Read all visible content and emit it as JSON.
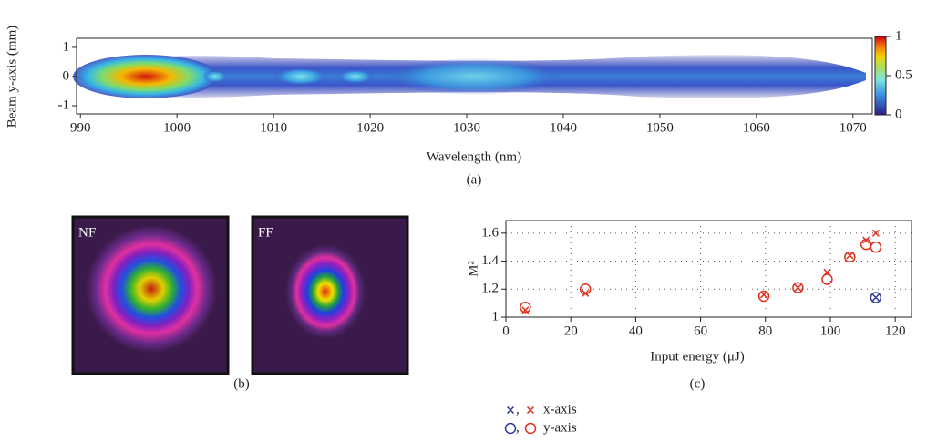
{
  "chart_data": [
    {
      "type": "heatmap",
      "xlabel": "Wavelength (nm)",
      "ylabel": "Beam y-axis (mm)",
      "caption": "(a)",
      "xlim": [
        989.6,
        1072
      ],
      "xticks": [
        990,
        1000,
        1010,
        1020,
        1030,
        1040,
        1050,
        1060,
        1070
      ],
      "ylim": [
        -1.28,
        1.31
      ],
      "yticks": [
        -1,
        0,
        1
      ],
      "colorbar": {
        "lim": [
          0,
          1
        ],
        "ticks": [
          0,
          0.5,
          1
        ]
      }
    },
    {
      "type": "image",
      "caption": "(b)",
      "labels": [
        "NF",
        "FF"
      ]
    },
    {
      "type": "scatter",
      "xlabel": "Input energy (μJ)",
      "ylabel": "M²",
      "caption": "(c)",
      "xlim": [
        0,
        125
      ],
      "xticks": [
        0,
        20,
        40,
        60,
        80,
        100,
        120
      ],
      "ylim": [
        1,
        1.69
      ],
      "yticks": [
        1,
        {
          "value": 1.2,
          "label": "1.2"
        },
        {
          "value": 1.4,
          "label": "1.4"
        },
        {
          "value": 1.6,
          "label": "1.6"
        }
      ],
      "grid": true,
      "series": [
        {
          "name": "x-axis",
          "marker": "x",
          "legend_colors": [
            "#2e3a9c",
            "#e0301e"
          ],
          "x": [
            6,
            24.5,
            79.5,
            90,
            99,
            106,
            111,
            114,
            114
          ],
          "values": [
            1.05,
            1.17,
            1.16,
            1.21,
            1.32,
            1.44,
            1.55,
            1.6,
            1.14
          ],
          "point_colors": [
            "#e0301e",
            "#e0301e",
            "#e0301e",
            "#e0301e",
            "#e0301e",
            "#e0301e",
            "#e0301e",
            "#e0301e",
            "#2e3a9c"
          ]
        },
        {
          "name": "y-axis",
          "marker": "circle",
          "legend_colors": [
            "#2e3a9c",
            "#e0301e"
          ],
          "x": [
            6,
            24.5,
            79.5,
            90,
            99,
            106,
            111,
            114,
            114
          ],
          "values": [
            1.07,
            1.2,
            1.15,
            1.21,
            1.27,
            1.43,
            1.52,
            1.5,
            1.14
          ],
          "point_colors": [
            "#e0301e",
            "#e0301e",
            "#e0301e",
            "#e0301e",
            "#e0301e",
            "#e0301e",
            "#e0301e",
            "#e0301e",
            "#2e3a9c"
          ]
        }
      ]
    }
  ]
}
